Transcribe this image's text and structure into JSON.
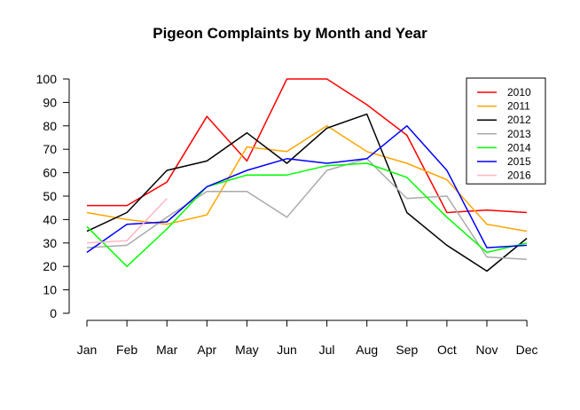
{
  "chart_data": {
    "type": "line",
    "title": "Pigeon Complaints by Month and Year",
    "xlabel": "",
    "ylabel": "",
    "categories": [
      "Jan",
      "Feb",
      "Mar",
      "Apr",
      "May",
      "Jun",
      "Jul",
      "Aug",
      "Sep",
      "Oct",
      "Nov",
      "Dec"
    ],
    "yticks": [
      0,
      10,
      20,
      30,
      40,
      50,
      60,
      70,
      80,
      90,
      100
    ],
    "ylim": [
      0,
      100
    ],
    "grid": false,
    "legend_position": "top-right",
    "series": [
      {
        "name": "2010",
        "color": "#ff0000",
        "values": [
          46,
          46,
          56,
          84,
          65,
          100,
          100,
          89,
          76,
          43,
          44,
          43
        ]
      },
      {
        "name": "2011",
        "color": "#ffa500",
        "values": [
          43,
          40,
          38,
          42,
          71,
          69,
          80,
          69,
          64,
          57,
          38,
          35
        ]
      },
      {
        "name": "2012",
        "color": "#000000",
        "values": [
          35,
          43,
          61,
          65,
          77,
          64,
          79,
          85,
          43,
          29,
          18,
          32
        ]
      },
      {
        "name": "2013",
        "color": "#aaaaaa",
        "values": [
          28,
          29,
          41,
          52,
          52,
          41,
          61,
          66,
          49,
          50,
          24,
          23
        ]
      },
      {
        "name": "2014",
        "color": "#00ff00",
        "values": [
          37,
          20,
          36,
          54,
          59,
          59,
          63,
          64,
          58,
          41,
          26,
          30
        ]
      },
      {
        "name": "2015",
        "color": "#0000ff",
        "values": [
          26,
          38,
          39,
          54,
          61,
          66,
          64,
          66,
          80,
          61,
          28,
          29
        ]
      },
      {
        "name": "2016",
        "color": "#ffb6c1",
        "values": [
          30,
          31,
          49,
          null,
          null,
          null,
          null,
          null,
          null,
          null,
          null,
          null
        ]
      }
    ]
  }
}
